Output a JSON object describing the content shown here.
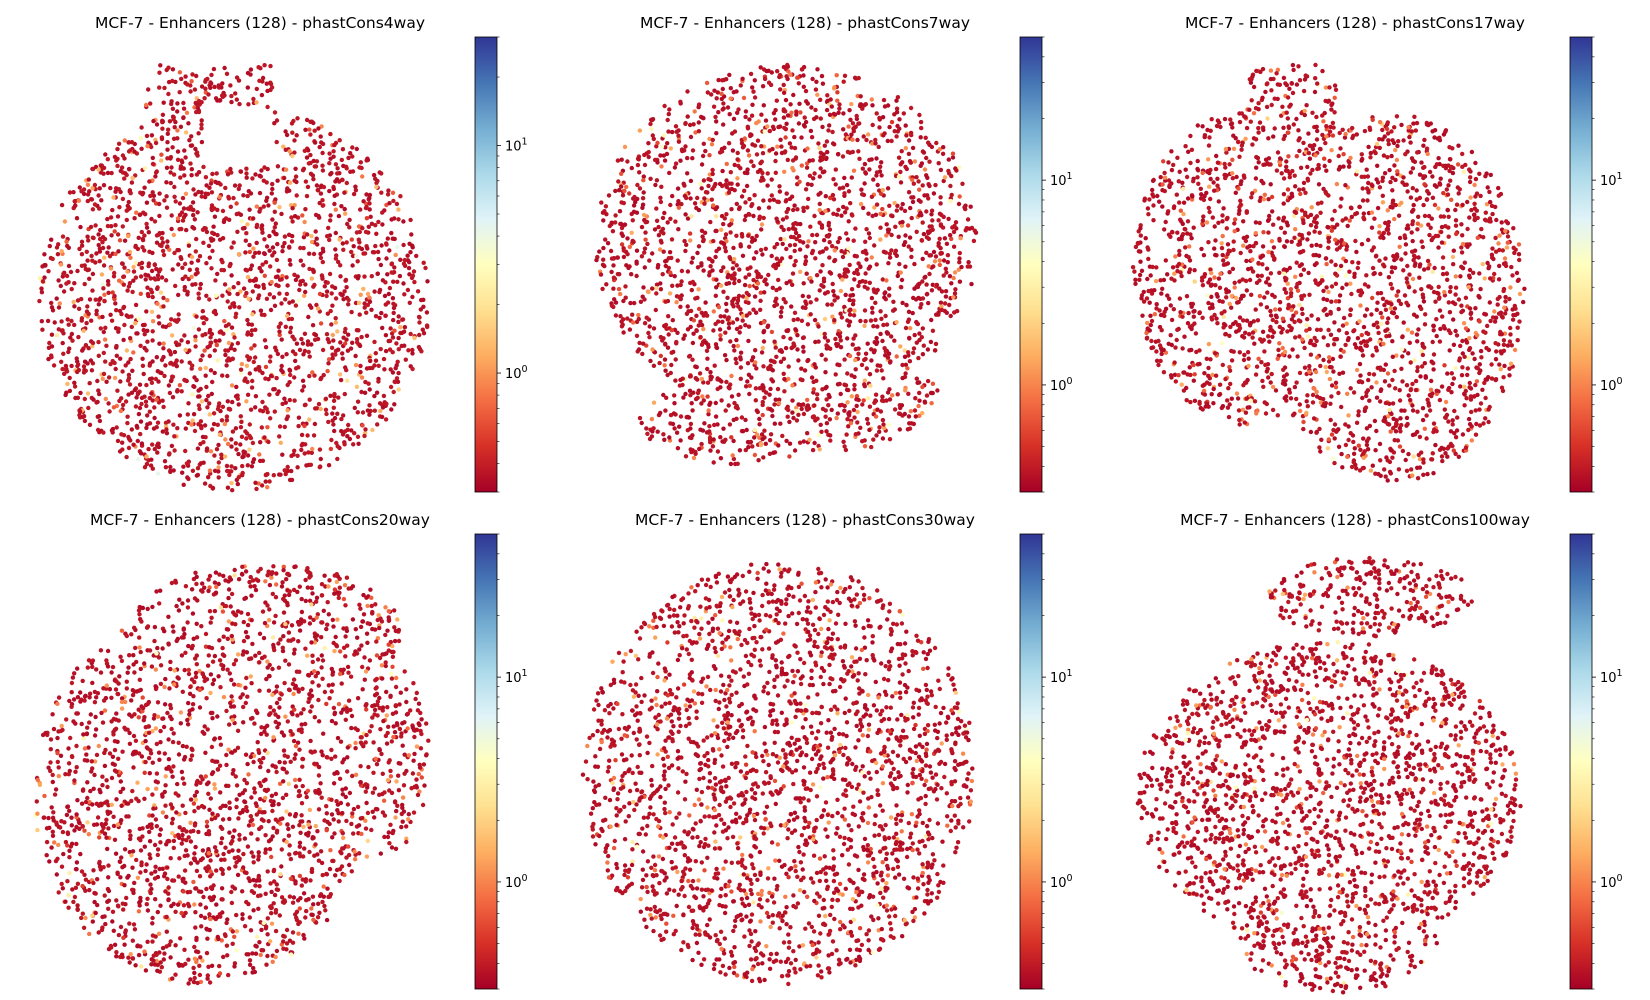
{
  "figure": {
    "note": "Six t-SNE style scatter panels with log-scale colorbars (RdYlBu colormap)"
  },
  "colormap": {
    "name": "RdYlBu",
    "stops": [
      "#a50026",
      "#d73027",
      "#f46d43",
      "#fdae61",
      "#fee090",
      "#ffffbf",
      "#e0f3f8",
      "#abd9e9",
      "#74add1",
      "#4575b4",
      "#313695"
    ]
  },
  "chart_data": [
    {
      "type": "scatter",
      "title": "MCF-7 - Enhancers (128) - phastCons4way",
      "shape": "blob_notch",
      "n_points": 2300,
      "colorbar": {
        "scale": "log",
        "min": 0.3,
        "max": 30,
        "ticks": [
          1,
          10
        ],
        "tick_labels": [
          "10^0",
          "10^1"
        ]
      },
      "value_distribution": {
        "mostly_low": true,
        "typical": 0.35,
        "occasional_high": 1.2
      }
    },
    {
      "type": "scatter",
      "title": "MCF-7 - Enhancers (128) - phastCons7way",
      "shape": "blob_lower_island",
      "n_points": 2300,
      "colorbar": {
        "scale": "log",
        "min": 0.3,
        "max": 50,
        "ticks": [
          1,
          10
        ],
        "tick_labels": [
          "10^0",
          "10^1"
        ]
      },
      "value_distribution": {
        "mostly_low": true,
        "typical": 0.35,
        "occasional_high": 1.2
      }
    },
    {
      "type": "scatter",
      "title": "MCF-7 - Enhancers (128) - phastCons17way",
      "shape": "two_lobes",
      "n_points": 2300,
      "colorbar": {
        "scale": "log",
        "min": 0.3,
        "max": 50,
        "ticks": [
          1,
          10
        ],
        "tick_labels": [
          "10^0",
          "10^1"
        ]
      },
      "value_distribution": {
        "mostly_low": true,
        "typical": 0.35,
        "occasional_high": 1.2
      }
    },
    {
      "type": "scatter",
      "title": "MCF-7 - Enhancers (128) - phastCons20way",
      "shape": "blob_right_arm",
      "n_points": 2300,
      "colorbar": {
        "scale": "log",
        "min": 0.3,
        "max": 50,
        "ticks": [
          1,
          10
        ],
        "tick_labels": [
          "10^0",
          "10^1"
        ]
      },
      "value_distribution": {
        "mostly_low": true,
        "typical": 0.35,
        "occasional_high": 1.2
      }
    },
    {
      "type": "scatter",
      "title": "MCF-7 - Enhancers (128) - phastCons30way",
      "shape": "round_blob",
      "n_points": 2300,
      "colorbar": {
        "scale": "log",
        "min": 0.3,
        "max": 50,
        "ticks": [
          1,
          10
        ],
        "tick_labels": [
          "10^0",
          "10^1"
        ]
      },
      "value_distribution": {
        "mostly_low": true,
        "typical": 0.35,
        "occasional_high": 1.2
      }
    },
    {
      "type": "scatter",
      "title": "MCF-7 - Enhancers (128) - phastCons100way",
      "shape": "blob_top_arm_bottom",
      "n_points": 2300,
      "colorbar": {
        "scale": "log",
        "min": 0.3,
        "max": 50,
        "ticks": [
          1,
          10
        ],
        "tick_labels": [
          "10^0",
          "10^1"
        ]
      },
      "value_distribution": {
        "mostly_low": true,
        "typical": 0.35,
        "occasional_high": 1.2
      }
    }
  ]
}
